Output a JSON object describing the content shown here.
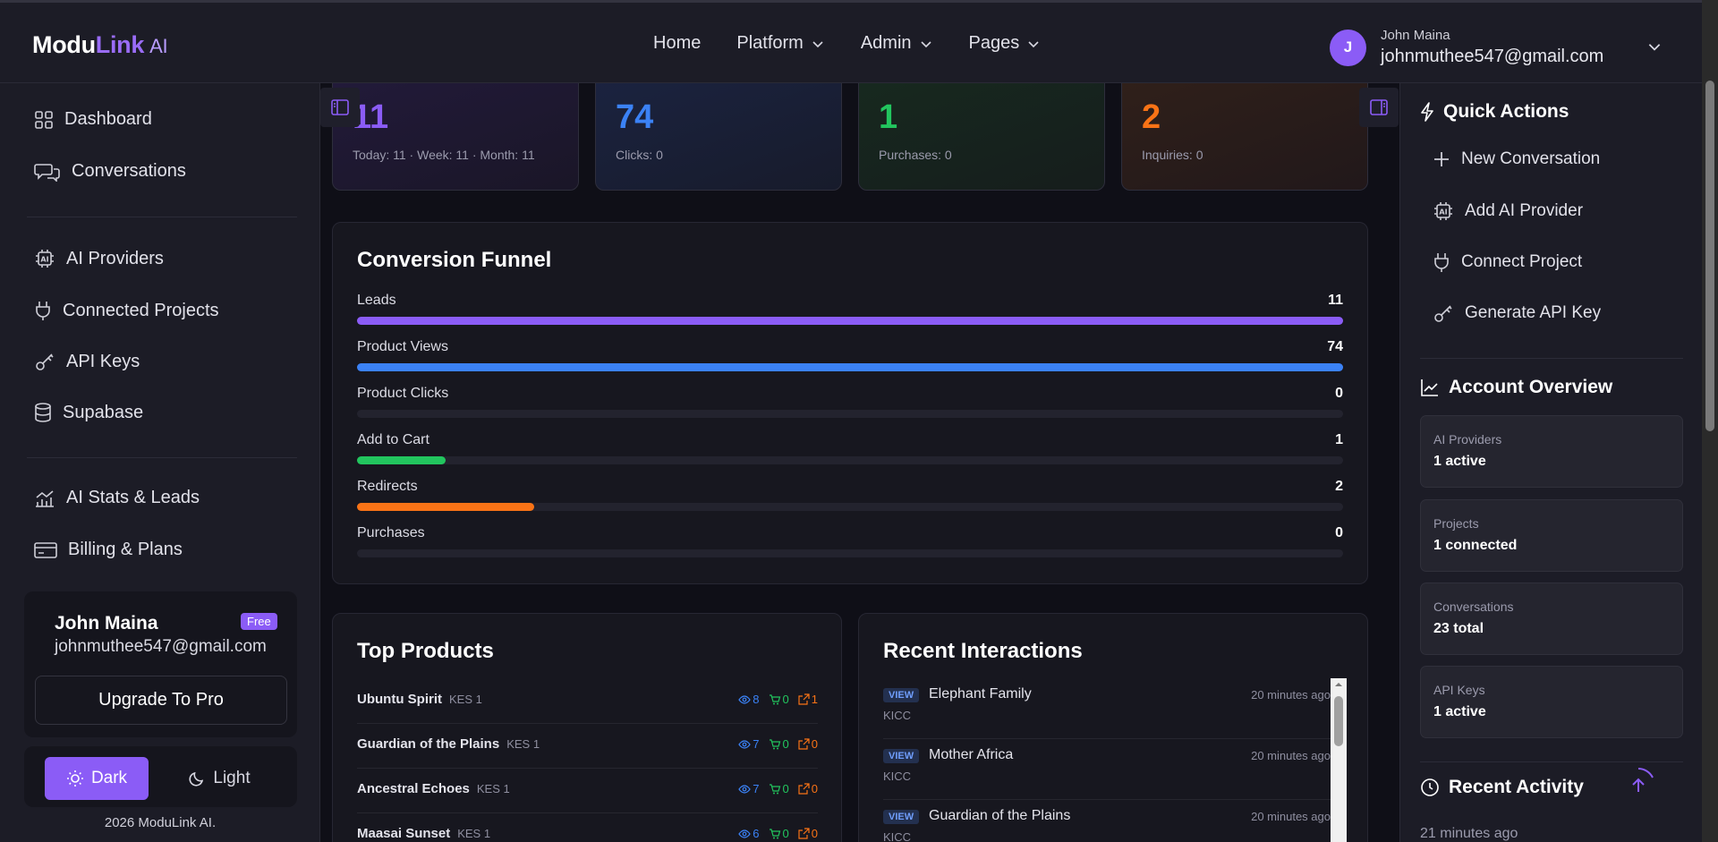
{
  "header": {
    "logo_modu": "Modu",
    "logo_link": "Link",
    "logo_ai": "AI",
    "nav": [
      {
        "label": "Home",
        "has_dropdown": false
      },
      {
        "label": "Platform",
        "has_dropdown": true
      },
      {
        "label": "Admin",
        "has_dropdown": true
      },
      {
        "label": "Pages",
        "has_dropdown": true
      }
    ],
    "user": {
      "initial": "J",
      "name": "John Maina",
      "email": "johnmuthee547@gmail.com"
    }
  },
  "sidebar": {
    "items": [
      {
        "label": "Dashboard",
        "icon": "dashboard-icon"
      },
      {
        "label": "Conversations",
        "icon": "chat-icon"
      },
      {
        "label": "AI Providers",
        "icon": "ai-chip-icon"
      },
      {
        "label": "Connected Projects",
        "icon": "plug-icon"
      },
      {
        "label": "API Keys",
        "icon": "key-icon"
      },
      {
        "label": "Supabase",
        "icon": "database-icon"
      },
      {
        "label": "AI Stats & Leads",
        "icon": "chart-icon"
      },
      {
        "label": "Billing & Plans",
        "icon": "card-icon"
      }
    ],
    "user_card": {
      "name": "John Maina",
      "email": "johnmuthee547@gmail.com",
      "plan": "Free",
      "upgrade_label": "Upgrade To Pro"
    },
    "theme": {
      "dark_label": "Dark",
      "light_label": "Light",
      "active": "dark"
    },
    "copyright": "2026 ModuLink AI."
  },
  "stats": [
    {
      "value": "11",
      "sub": "Today: 11 · Week: 11 · Month: 11",
      "color": "#8b5cf6"
    },
    {
      "value": "74",
      "sub": "Clicks: 0",
      "color": "#3b82f6"
    },
    {
      "value": "1",
      "sub": "Purchases: 0",
      "color": "#22c55e"
    },
    {
      "value": "2",
      "sub": "Inquiries: 0",
      "color": "#f97316"
    }
  ],
  "funnel": {
    "title": "Conversion Funnel",
    "rows": [
      {
        "label": "Leads",
        "value": "11",
        "fraction": 1.0,
        "color": "#8b5cf6"
      },
      {
        "label": "Product Views",
        "value": "74",
        "fraction": 1.0,
        "color": "#3b82f6"
      },
      {
        "label": "Product Clicks",
        "value": "0",
        "fraction": 0,
        "color": "#3b82f6"
      },
      {
        "label": "Add to Cart",
        "value": "1",
        "fraction": 0.09,
        "color": "#22c55e"
      },
      {
        "label": "Redirects",
        "value": "2",
        "fraction": 0.18,
        "color": "#f97316"
      },
      {
        "label": "Purchases",
        "value": "0",
        "fraction": 0,
        "color": "#22c55e"
      }
    ]
  },
  "top_products": {
    "title": "Top Products",
    "rows": [
      {
        "name": "Ubuntu Spirit",
        "category": "KES 1",
        "views": "8",
        "carts": "0",
        "redirects": "1"
      },
      {
        "name": "Guardian of the Plains",
        "category": "KES 1",
        "views": "7",
        "carts": "0",
        "redirects": "0"
      },
      {
        "name": "Ancestral Echoes",
        "category": "KES 1",
        "views": "7",
        "carts": "0",
        "redirects": "0"
      },
      {
        "name": "Maasai Sunset",
        "category": "KES 1",
        "views": "6",
        "carts": "0",
        "redirects": "0"
      }
    ]
  },
  "recent_interactions": {
    "title": "Recent Interactions",
    "rows": [
      {
        "type": "VIEW",
        "name": "Elephant Family",
        "time": "20 minutes ago",
        "sub": "KICC"
      },
      {
        "type": "VIEW",
        "name": "Mother Africa",
        "time": "20 minutes ago",
        "sub": "KICC"
      },
      {
        "type": "VIEW",
        "name": "Guardian of the Plains",
        "time": "20 minutes ago",
        "sub": "KICC"
      }
    ]
  },
  "quick_actions": {
    "title": "Quick Actions",
    "items": [
      {
        "label": "New Conversation",
        "icon": "plus-icon"
      },
      {
        "label": "Add AI Provider",
        "icon": "ai-chip-icon"
      },
      {
        "label": "Connect Project",
        "icon": "plug-icon"
      },
      {
        "label": "Generate API Key",
        "icon": "key-icon"
      }
    ]
  },
  "account_overview": {
    "title": "Account Overview",
    "cards": [
      {
        "label": "AI Providers",
        "value": "1 active"
      },
      {
        "label": "Projects",
        "value": "1 connected"
      },
      {
        "label": "Conversations",
        "value": "23 total"
      },
      {
        "label": "API Keys",
        "value": "1 active"
      }
    ]
  },
  "recent_activity": {
    "title": "Recent Activity",
    "first_time": "21 minutes ago"
  }
}
